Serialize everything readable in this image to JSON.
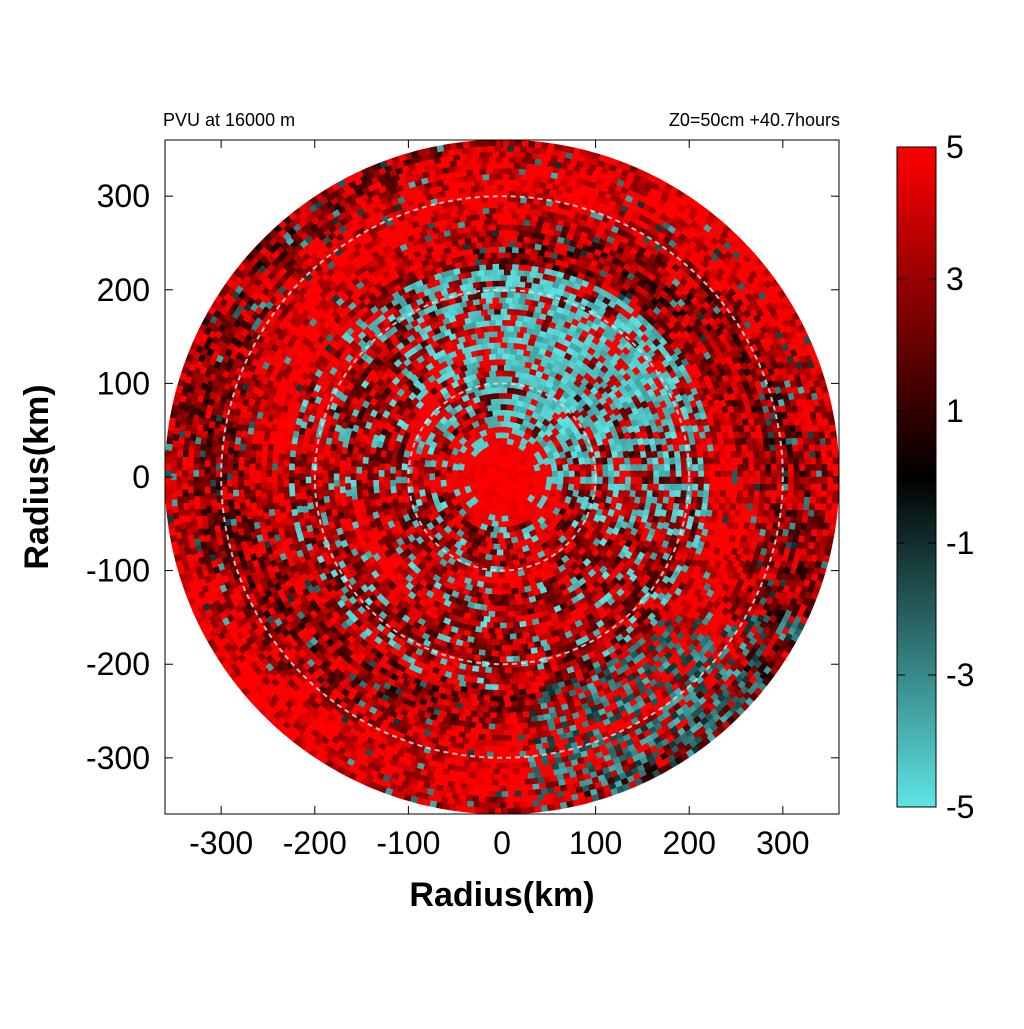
{
  "chart_data": {
    "type": "heatmap",
    "title_left": "PVU at 16000 m",
    "title_right": "Z0=50cm  +40.7hours",
    "xlabel": "Radius(km)",
    "ylabel": "Radius(km)",
    "xlim": [
      -360,
      360
    ],
    "ylim": [
      -360,
      360
    ],
    "x_ticks": [
      -300,
      -200,
      -100,
      0,
      100,
      200,
      300
    ],
    "y_ticks": [
      300,
      200,
      100,
      0,
      -100,
      -200,
      -300
    ],
    "domain_radius_km": 360,
    "reference_circles_km": [
      100,
      200,
      300
    ],
    "colorbar": {
      "min": -5,
      "max": 5,
      "ticks": [
        5,
        3,
        1,
        -1,
        -3,
        -5
      ],
      "colors": [
        "#5ee4e4",
        "#000000",
        "#ff0000"
      ]
    },
    "grid": false
  }
}
